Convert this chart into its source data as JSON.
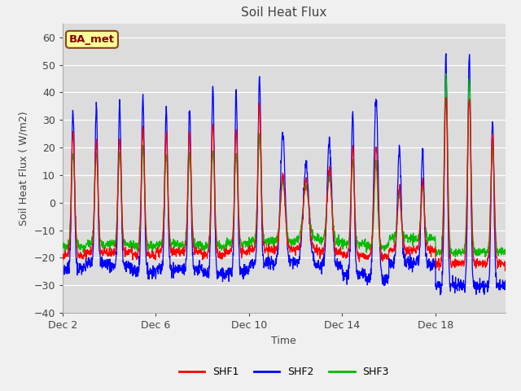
{
  "title": "Soil Heat Flux",
  "xlabel": "Time",
  "ylabel": "Soil Heat Flux ( W/m2)",
  "ylim": [
    -40,
    65
  ],
  "yticks": [
    -40,
    -30,
    -20,
    -10,
    0,
    10,
    20,
    30,
    40,
    50,
    60
  ],
  "series_colors": [
    "#ff0000",
    "#0000ff",
    "#00bb00"
  ],
  "series_labels": [
    "SHF1",
    "SHF2",
    "SHF3"
  ],
  "annotation_text": "BA_met",
  "annotation_box_facecolor": "#ffff99",
  "annotation_box_edgecolor": "#8b4513",
  "annotation_text_color": "#8b0000",
  "x_tick_labels": [
    "Dec 2",
    "Dec 6",
    "Dec 10",
    "Dec 14",
    "Dec 18"
  ],
  "fig_facecolor": "#f0f0f0",
  "plot_facecolor": "#dcdcdc",
  "grid_color": "#ffffff"
}
